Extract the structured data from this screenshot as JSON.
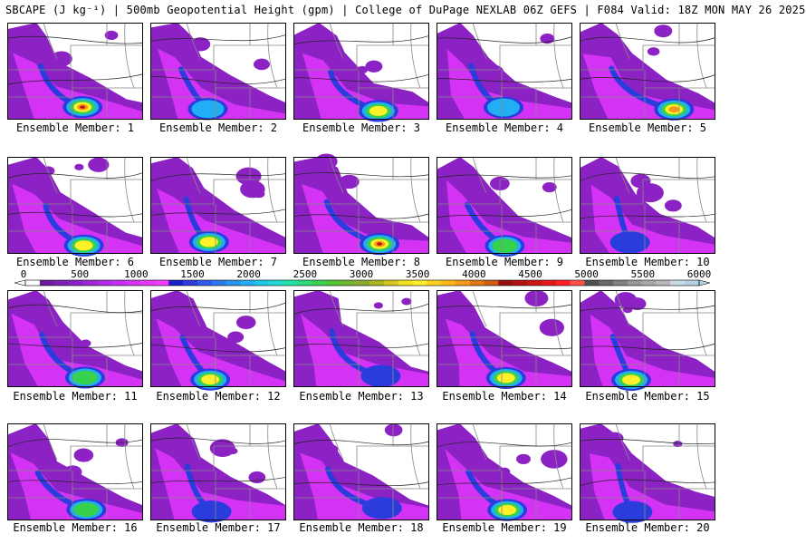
{
  "header": {
    "title": "SBCAPE (J kg⁻¹) | 500mb Geopotential Height (gpm) | College of DuPage NEXLAB 06Z GEFS | F084 Valid: 18Z MON MAY 26 2025"
  },
  "colorbar": {
    "tick_labels": [
      "0",
      "500",
      "1000",
      "1500",
      "2000",
      "2500",
      "3000",
      "3500",
      "4000",
      "4500",
      "5000",
      "5500",
      "6000"
    ],
    "colors": [
      "#ffffff",
      "#6a1c9c",
      "#7b1fb0",
      "#8c22c4",
      "#9d26d8",
      "#b02be6",
      "#c22ff0",
      "#d433f5",
      "#e636f8",
      "#f03cf4",
      "#1e1ec8",
      "#2a3cdc",
      "#3358ec",
      "#2f78f0",
      "#2894f2",
      "#22aef4",
      "#1ec6ee",
      "#20d8d0",
      "#22e0a6",
      "#2adc78",
      "#36d24c",
      "#52c43a",
      "#70b632",
      "#8ea82c",
      "#aab226",
      "#d2c622",
      "#f0e020",
      "#fff02a",
      "#ffd21e",
      "#ffb81a",
      "#f49a18",
      "#e07814",
      "#ce5c12",
      "#9a1010",
      "#b41212",
      "#cc1414",
      "#e21818",
      "#ff2020",
      "#ff5050",
      "#505050",
      "#686868",
      "#808080",
      "#989898",
      "#a8a8a8",
      "#b8b8b8",
      "#c8dce4",
      "#b4d2e0"
    ]
  },
  "colors": {
    "low": "#8c22c4",
    "mid": "#d433f5",
    "blue": "#2a3cdc",
    "cyan": "#22aef4",
    "green": "#36d24c",
    "yellow": "#fff02a",
    "orange": "#f49a18",
    "red": "#c01414",
    "border": "#888888"
  },
  "members": [
    {
      "label": "Ensemble Member: 1",
      "max_level": "red"
    },
    {
      "label": "Ensemble Member: 2",
      "max_level": "cyan"
    },
    {
      "label": "Ensemble Member: 3",
      "max_level": "yellow"
    },
    {
      "label": "Ensemble Member: 4",
      "max_level": "cyan"
    },
    {
      "label": "Ensemble Member: 5",
      "max_level": "orange"
    },
    {
      "label": "Ensemble Member: 6",
      "max_level": "yellow"
    },
    {
      "label": "Ensemble Member: 7",
      "max_level": "yellow"
    },
    {
      "label": "Ensemble Member: 8",
      "max_level": "red"
    },
    {
      "label": "Ensemble Member: 9",
      "max_level": "green"
    },
    {
      "label": "Ensemble Member: 10",
      "max_level": "blue"
    },
    {
      "label": "Ensemble Member: 11",
      "max_level": "green"
    },
    {
      "label": "Ensemble Member: 12",
      "max_level": "yellow"
    },
    {
      "label": "Ensemble Member: 13",
      "max_level": "blue"
    },
    {
      "label": "Ensemble Member: 14",
      "max_level": "yellow"
    },
    {
      "label": "Ensemble Member: 15",
      "max_level": "yellow"
    },
    {
      "label": "Ensemble Member: 16",
      "max_level": "green"
    },
    {
      "label": "Ensemble Member: 17",
      "max_level": "blue"
    },
    {
      "label": "Ensemble Member: 18",
      "max_level": "blue"
    },
    {
      "label": "Ensemble Member: 19",
      "max_level": "yellow"
    },
    {
      "label": "Ensemble Member: 20",
      "max_level": "blue"
    }
  ]
}
